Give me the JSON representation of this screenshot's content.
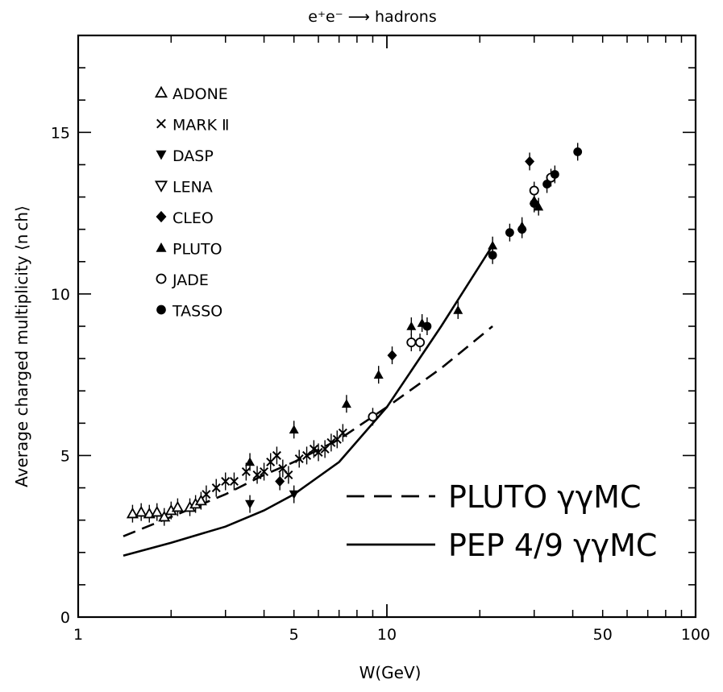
{
  "chart_data": {
    "type": "scatter",
    "title": "e⁺e⁻ ⟶ hadrons",
    "xlabel": "W(GeV)",
    "ylabel": "Average charged multiplicity   ⟨n ch⟩",
    "xscale": "log",
    "xlim": [
      1,
      100
    ],
    "ylim": [
      0,
      18
    ],
    "x_ticks": [
      1,
      5,
      10,
      50,
      100
    ],
    "x_tick_labels": [
      "1",
      "5",
      "10",
      "50",
      "100"
    ],
    "y_ticks": [
      0,
      5,
      10,
      15
    ],
    "y_tick_labels": [
      "0",
      "5",
      "10",
      "15"
    ],
    "grid": false,
    "legend_position": "top-left",
    "series": [
      {
        "name": "ADONE",
        "marker": "triangle-up-open",
        "x": [
          1.5,
          1.6,
          1.7,
          1.8,
          1.9,
          2.0,
          2.1,
          2.3,
          2.4,
          2.5
        ],
        "y": [
          3.2,
          3.25,
          3.2,
          3.25,
          3.1,
          3.3,
          3.4,
          3.4,
          3.5,
          3.6
        ]
      },
      {
        "name": "MARK Ⅱ",
        "marker": "x",
        "x": [
          2.6,
          2.8,
          3.0,
          3.2,
          3.5,
          3.8,
          4.0,
          4.2,
          4.4,
          4.6,
          4.8,
          5.2,
          5.5,
          5.8,
          6.0,
          6.3,
          6.6,
          6.9,
          7.2
        ],
        "y": [
          3.8,
          4.0,
          4.2,
          4.2,
          4.5,
          4.4,
          4.5,
          4.8,
          5.0,
          4.6,
          4.4,
          4.9,
          5.0,
          5.2,
          5.1,
          5.2,
          5.4,
          5.5,
          5.7
        ]
      },
      {
        "name": "DASP",
        "marker": "triangle-down-filled",
        "x": [
          3.6,
          5.0
        ],
        "y": [
          3.5,
          3.8
        ]
      },
      {
        "name": "LENA",
        "marker": "triangle-down-open",
        "x": [],
        "y": []
      },
      {
        "name": "CLEO",
        "marker": "diamond-filled",
        "x": [
          4.5,
          10.4,
          29
        ],
        "y": [
          4.2,
          8.1,
          14.1
        ]
      },
      {
        "name": "PLUTO",
        "marker": "triangle-up-filled",
        "x": [
          3.6,
          5.0,
          7.4,
          9.4,
          12.0,
          13.0,
          17.0,
          22.0,
          27.4,
          30.0,
          31.0
        ],
        "y": [
          4.8,
          5.8,
          6.6,
          7.5,
          9.0,
          9.1,
          9.5,
          11.5,
          12.1,
          12.9,
          12.7
        ]
      },
      {
        "name": "JADE",
        "marker": "circle-open",
        "x": [
          9.0,
          12.0,
          12.8,
          30.0,
          34.0
        ],
        "y": [
          6.2,
          8.5,
          8.5,
          13.2,
          13.6
        ]
      },
      {
        "name": "TASSO",
        "marker": "circle-filled",
        "x": [
          13.5,
          22.0,
          25.0,
          27.4,
          30.0,
          33.0,
          35.0,
          41.5
        ],
        "y": [
          9.0,
          11.2,
          11.9,
          12.0,
          12.8,
          13.4,
          13.7,
          14.4
        ]
      }
    ],
    "curves": [
      {
        "name": "PLUTO γγMC",
        "style": "dashed",
        "x": [
          1.4,
          2.0,
          3.0,
          4.0,
          5.0,
          7.0,
          10.0,
          15.0,
          22.0
        ],
        "y": [
          2.5,
          3.1,
          3.8,
          4.4,
          4.8,
          5.5,
          6.5,
          7.7,
          9.0
        ]
      },
      {
        "name": "PEP 4/9 γγMC",
        "style": "solid",
        "x": [
          1.4,
          2.0,
          3.0,
          4.0,
          5.0,
          7.0,
          10.0,
          15.0,
          22.0
        ],
        "y": [
          1.9,
          2.3,
          2.8,
          3.3,
          3.8,
          4.8,
          6.5,
          9.0,
          11.5
        ]
      }
    ]
  }
}
